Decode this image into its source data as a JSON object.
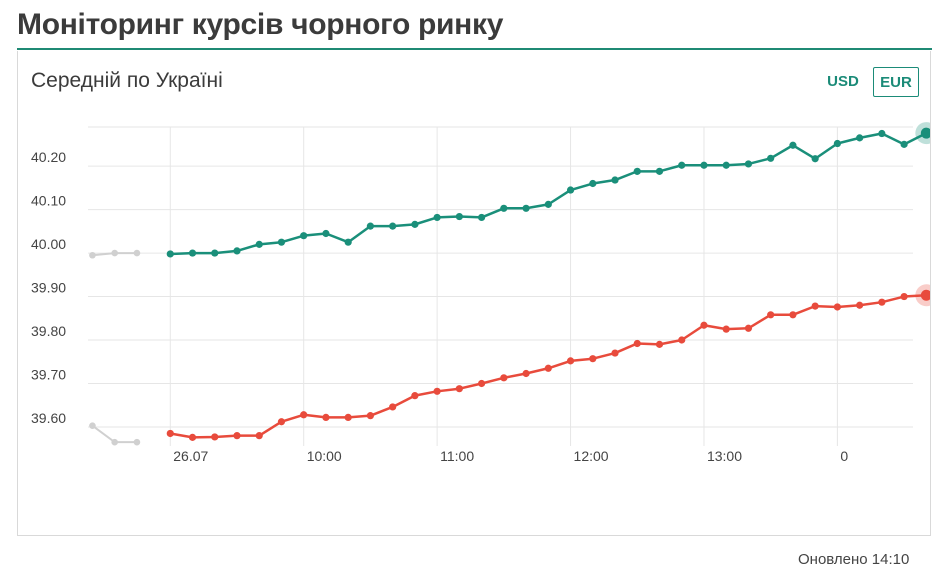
{
  "page": {
    "title": "Моніторинг курсів чорного ринку"
  },
  "card": {
    "title": "Середній по Україні",
    "currency_usd": "USD",
    "currency_eur": "EUR",
    "selected_currency": "EUR",
    "updated": "Оновлено 14:10"
  },
  "colors": {
    "accent": "#1b8b78",
    "buy": "#e84b3c",
    "sell": "#1a8f7a",
    "previous": "#d0d0d0"
  },
  "chart_data": {
    "type": "line",
    "title": "",
    "xlabel": "",
    "ylabel": "",
    "x_unit": "minutes since 09:00",
    "xlim": [
      -37,
      334
    ],
    "ylim": [
      39.57,
      40.29
    ],
    "grid": true,
    "y_ticks": [
      {
        "value": 39.6,
        "label": "39.60"
      },
      {
        "value": 39.7,
        "label": "39.70"
      },
      {
        "value": 39.8,
        "label": "39.80"
      },
      {
        "value": 39.9,
        "label": "39.90"
      },
      {
        "value": 40.0,
        "label": "40.00"
      },
      {
        "value": 40.1,
        "label": "40.10"
      },
      {
        "value": 40.2,
        "label": "40.20"
      }
    ],
    "x_ticks": [
      {
        "value": 0,
        "label": "26.07"
      },
      {
        "value": 60,
        "label": "10:00"
      },
      {
        "value": 120,
        "label": "11:00"
      },
      {
        "value": 180,
        "label": "12:00"
      },
      {
        "value": 240,
        "label": "13:00"
      },
      {
        "value": 300,
        "label": "0"
      }
    ],
    "series": [
      {
        "name": "",
        "color": "#1a8f7a",
        "x": [
          0,
          10,
          20,
          30,
          40,
          50,
          60,
          70,
          80,
          90,
          100,
          110,
          120,
          130,
          140,
          150,
          160,
          170,
          180,
          190,
          200,
          210,
          220,
          230,
          240,
          250,
          260,
          270,
          280,
          290,
          300,
          310,
          320,
          330
        ],
        "y": [
          39.998,
          40.0,
          40.0,
          40.005,
          40.02,
          40.025,
          40.04,
          40.045,
          40.025,
          40.062,
          40.062,
          40.066,
          40.082,
          40.084,
          40.082,
          40.103,
          40.103,
          40.112,
          40.145,
          40.16,
          40.168,
          40.188,
          40.188,
          40.202,
          40.202,
          40.202,
          40.205,
          40.218,
          40.248,
          40.217,
          40.252,
          40.265,
          40.275,
          40.25
        ],
        "last_point": {
          "x": 340,
          "y": 40.276
        }
      },
      {
        "name": "",
        "color": "#e84b3c",
        "x": [
          0,
          10,
          20,
          30,
          40,
          50,
          60,
          70,
          80,
          90,
          100,
          110,
          120,
          130,
          140,
          150,
          160,
          170,
          180,
          190,
          200,
          210,
          220,
          230,
          240,
          250,
          260,
          270,
          280,
          290,
          300,
          310,
          320,
          330
        ],
        "y": [
          39.585,
          39.576,
          39.577,
          39.58,
          39.58,
          39.612,
          39.628,
          39.622,
          39.622,
          39.626,
          39.646,
          39.672,
          39.682,
          39.688,
          39.7,
          39.713,
          39.723,
          39.735,
          39.752,
          39.757,
          39.77,
          39.792,
          39.79,
          39.8,
          39.834,
          39.825,
          39.827,
          39.858,
          39.858,
          39.878,
          39.876,
          39.88,
          39.887,
          39.9
        ],
        "last_point": {
          "x": 340,
          "y": 39.903
        }
      }
    ],
    "previous_day": [
      {
        "name": "",
        "x": [
          -35,
          -25,
          -15
        ],
        "y": [
          39.995,
          40.0,
          40.0
        ]
      },
      {
        "name": "",
        "x": [
          -35,
          -25,
          -15
        ],
        "y": [
          39.603,
          39.565,
          39.565
        ]
      }
    ]
  }
}
